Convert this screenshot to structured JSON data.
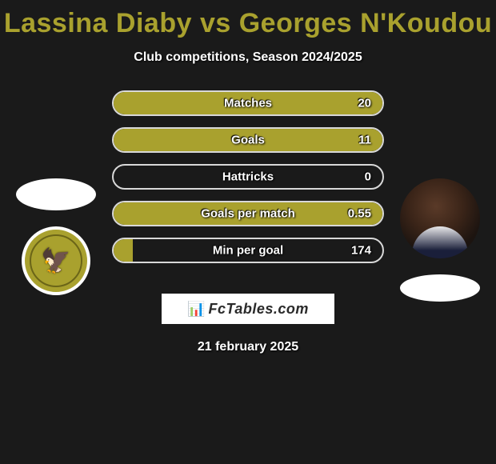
{
  "title": "Lassina Diaby vs Georges N'Koudou",
  "subtitle": "Club competitions, Season 2024/2025",
  "date": "21 february 2025",
  "brand": {
    "text": "FcTables.com"
  },
  "colors": {
    "accent": "#a9a12e",
    "background": "#1a1a1a",
    "border": "#d8d8d8",
    "text": "#ffffff",
    "badge_inner": "#6b6518"
  },
  "stats": [
    {
      "label": "Matches",
      "left_pct": 100,
      "right_pct": 0,
      "right_value": "20"
    },
    {
      "label": "Goals",
      "left_pct": 100,
      "right_pct": 0,
      "right_value": "11"
    },
    {
      "label": "Hattricks",
      "left_pct": 0,
      "right_pct": 0,
      "right_value": "0"
    },
    {
      "label": "Goals per match",
      "left_pct": 100,
      "right_pct": 0,
      "right_value": "0.55"
    },
    {
      "label": "Min per goal",
      "left_pct": 7,
      "right_pct": 0,
      "right_value": "174"
    }
  ],
  "left_player": {
    "name": "Lassina Diaby",
    "club_hint": "KHALEEJ FC"
  },
  "right_player": {
    "name": "Georges N'Koudou"
  }
}
